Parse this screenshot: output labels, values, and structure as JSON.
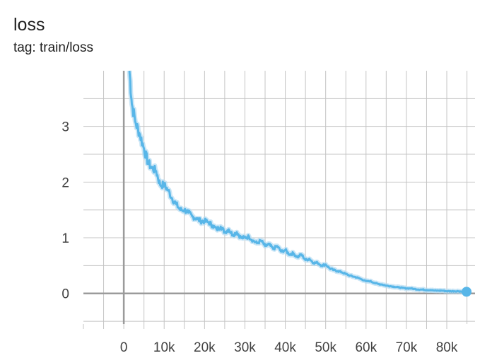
{
  "card": {
    "title": "loss",
    "subtitle": "tag: train/loss"
  },
  "colors": {
    "series": "#58b6e8",
    "series_shadow": "#b5dcf2",
    "grid": "#c4c4c4",
    "axis": "#9b9b9b",
    "tick_text": "#424242"
  },
  "chart_data": {
    "type": "line",
    "title": "loss",
    "subtitle": "tag: train/loss",
    "xlabel": "",
    "ylabel": "",
    "xlim": [
      -10000,
      87000
    ],
    "ylim": [
      -0.55,
      4.0
    ],
    "grid": true,
    "x_ticks": [
      0,
      10000,
      20000,
      30000,
      40000,
      50000,
      60000,
      70000,
      80000
    ],
    "x_tick_labels": [
      "0",
      "10k",
      "20k",
      "30k",
      "40k",
      "50k",
      "60k",
      "70k",
      "80k"
    ],
    "y_ticks": [
      0,
      1,
      2,
      3
    ],
    "y_tick_labels": [
      "0",
      "1",
      "2",
      "3"
    ],
    "series": [
      {
        "x": [
          1400,
          2000,
          3000,
          4000,
          5000,
          6000,
          7000,
          8000,
          9000,
          10000,
          11000,
          12000,
          13000,
          14000,
          15000,
          16000,
          17000,
          18000,
          19000,
          20000,
          21000,
          22000,
          23000,
          24000,
          25000,
          26000,
          27000,
          28000,
          29000,
          30000,
          31000,
          32000,
          33000,
          34000,
          35000,
          36000,
          37000,
          38000,
          39000,
          40000,
          41000,
          42000,
          43000,
          44000,
          45000,
          46000,
          47000,
          48000,
          49000,
          50000,
          51000,
          52000,
          53000,
          54000,
          55000,
          56000,
          57000,
          58000,
          59000,
          60000,
          61000,
          62000,
          63000,
          64000,
          65000,
          66000,
          67000,
          68000,
          69000,
          70000,
          71000,
          72000,
          73000,
          74000,
          75000,
          76000,
          77000,
          78000,
          79000,
          80000,
          81000,
          82000,
          83000,
          84000,
          84900
        ],
        "y": [
          4.0,
          3.4,
          3.05,
          2.85,
          2.6,
          2.35,
          2.25,
          2.2,
          1.95,
          1.95,
          1.85,
          1.7,
          1.6,
          1.5,
          1.5,
          1.45,
          1.38,
          1.35,
          1.3,
          1.3,
          1.28,
          1.22,
          1.15,
          1.2,
          1.1,
          1.15,
          1.05,
          1.1,
          1.0,
          1.0,
          1.02,
          0.95,
          0.9,
          0.95,
          0.85,
          0.88,
          0.8,
          0.85,
          0.75,
          0.78,
          0.7,
          0.72,
          0.65,
          0.7,
          0.6,
          0.62,
          0.55,
          0.55,
          0.5,
          0.52,
          0.45,
          0.42,
          0.4,
          0.38,
          0.35,
          0.32,
          0.3,
          0.28,
          0.25,
          0.22,
          0.22,
          0.19,
          0.17,
          0.16,
          0.14,
          0.13,
          0.12,
          0.11,
          0.1,
          0.09,
          0.09,
          0.08,
          0.07,
          0.07,
          0.06,
          0.06,
          0.05,
          0.05,
          0.05,
          0.04,
          0.04,
          0.04,
          0.04,
          0.03,
          0.03
        ]
      }
    ]
  }
}
